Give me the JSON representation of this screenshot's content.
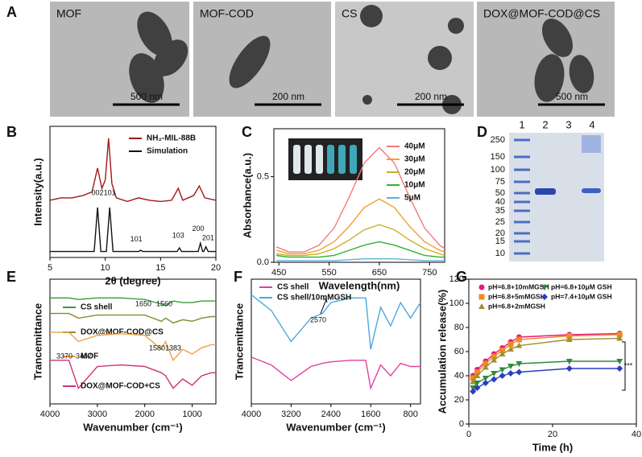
{
  "panel_labels": [
    "A",
    "B",
    "C",
    "D",
    "E",
    "F",
    "G"
  ],
  "tem_images": [
    {
      "label": "MOF",
      "scale": "500 nm"
    },
    {
      "label": "MOF-COD",
      "scale": "200 nm"
    },
    {
      "label": "CS",
      "scale": "200 nm"
    },
    {
      "label": "DOX@MOF-COD@CS",
      "scale": "500 nm"
    }
  ],
  "gel": {
    "lanes": [
      "1",
      "2",
      "3",
      "4"
    ],
    "markers": [
      250,
      150,
      100,
      75,
      50,
      40,
      35,
      25,
      20,
      15,
      10
    ]
  },
  "chart_data": [
    {
      "type": "line",
      "xlabel": "2θ (degree)",
      "ylabel": "Intensity(a.u.)",
      "xlim": [
        5,
        20
      ],
      "ylim": [
        0,
        110
      ],
      "xticks": [
        5,
        10,
        15,
        20
      ],
      "series": [
        {
          "name": "NH₂-MIL-88B",
          "color": "#a01818",
          "x": [
            5,
            6,
            7,
            8,
            8.8,
            9.3,
            9.7,
            10.0,
            10.3,
            10.6,
            11,
            12,
            13,
            14,
            15,
            16,
            16.6,
            17,
            18,
            18.5,
            19,
            20
          ],
          "values": [
            48,
            50,
            50,
            52,
            55,
            75,
            58,
            65,
            100,
            62,
            50,
            47,
            50,
            48,
            47,
            48,
            58,
            48,
            52,
            60,
            50,
            48
          ]
        },
        {
          "name": "Simulation",
          "color": "#111111",
          "x": [
            5,
            9.0,
            9.3,
            9.6,
            10.1,
            10.4,
            10.7,
            13,
            13.2,
            13.4,
            16.5,
            16.7,
            16.9,
            18.4,
            18.6,
            18.8,
            18.9,
            19.1,
            19.3,
            20
          ],
          "values": [
            5,
            5,
            42,
            5,
            5,
            42,
            5,
            5,
            6,
            5,
            5,
            8,
            5,
            5,
            12,
            5,
            5,
            9,
            5,
            5
          ]
        }
      ],
      "annotations": [
        "002",
        "101",
        "101",
        "103",
        "200",
        "201"
      ]
    },
    {
      "type": "line",
      "xlabel": "Wavelength(nm)",
      "ylabel": "Absorbance(a.u.)",
      "xlim": [
        440,
        780
      ],
      "ylim": [
        0,
        0.78
      ],
      "xticks": [
        450,
        550,
        650,
        750
      ],
      "yticks": [
        {
          "value": 0,
          "label": "0.0"
        },
        {
          "value": 0.5,
          "label": "0.5"
        }
      ],
      "x": [
        445,
        470,
        500,
        530,
        560,
        590,
        620,
        650,
        680,
        710,
        740,
        770,
        780
      ],
      "series": [
        {
          "name": "40μM",
          "color": "#f07a7a",
          "values": [
            0.09,
            0.06,
            0.06,
            0.1,
            0.2,
            0.38,
            0.58,
            0.67,
            0.58,
            0.38,
            0.2,
            0.1,
            0.08
          ]
        },
        {
          "name": "30μM",
          "color": "#f0a030",
          "values": [
            0.07,
            0.05,
            0.05,
            0.07,
            0.12,
            0.21,
            0.32,
            0.37,
            0.32,
            0.21,
            0.12,
            0.07,
            0.06
          ]
        },
        {
          "name": "20μM",
          "color": "#c8b020",
          "values": [
            0.05,
            0.04,
            0.04,
            0.05,
            0.08,
            0.13,
            0.19,
            0.22,
            0.19,
            0.13,
            0.08,
            0.05,
            0.04
          ]
        },
        {
          "name": "10μM",
          "color": "#30b030",
          "values": [
            0.04,
            0.03,
            0.03,
            0.03,
            0.04,
            0.07,
            0.1,
            0.12,
            0.1,
            0.07,
            0.04,
            0.03,
            0.03
          ]
        },
        {
          "name": "5μM",
          "color": "#60b0e0",
          "values": [
            0.01,
            0.01,
            0.01,
            0.01,
            0.01,
            0.015,
            0.02,
            0.02,
            0.02,
            0.015,
            0.01,
            0.01,
            0.01
          ]
        }
      ]
    },
    {
      "type": "line",
      "xlabel": "Wavenumber (cm⁻¹)",
      "ylabel": "Trancemittance",
      "xlim": [
        4000,
        500
      ],
      "ylim": [
        20,
        100
      ],
      "xticks": [
        4000,
        3000,
        2000,
        1000
      ],
      "x": [
        4000,
        3600,
        3400,
        3000,
        2500,
        2000,
        1650,
        1560,
        1400,
        1200,
        1000,
        800,
        600,
        500
      ],
      "series": [
        {
          "name": "CS shell",
          "color": "#3a9a3a",
          "values": [
            88,
            88,
            87,
            88,
            88,
            87,
            84,
            83,
            86,
            85,
            85,
            86,
            86,
            86
          ]
        },
        {
          "name": "DOX@MOF-COD@CS",
          "color": "#8a8a30",
          "values": [
            78,
            78,
            75,
            77,
            77,
            77,
            73,
            75,
            72,
            74,
            73,
            75,
            76,
            76
          ]
        },
        {
          "name": "MOF",
          "color": "#f0a040",
          "values": [
            66,
            66,
            60,
            64,
            65,
            64,
            55,
            60,
            48,
            55,
            52,
            56,
            58,
            58
          ]
        },
        {
          "name": "DOX@MOF-COD+CS",
          "color": "#d0307a",
          "values": [
            48,
            48,
            30,
            44,
            45,
            44,
            40,
            38,
            30,
            36,
            32,
            38,
            40,
            40
          ]
        }
      ],
      "annotations": [
        "1650",
        "1560",
        "3370",
        "3462",
        "1580",
        "1383"
      ]
    },
    {
      "type": "line",
      "xlabel": "Wavenumber (cm⁻¹)",
      "ylabel": "Trancemittance",
      "xlim": [
        4000,
        600
      ],
      "ylim": [
        20,
        100
      ],
      "xticks": [
        4000,
        3200,
        2400,
        1600,
        800
      ],
      "x": [
        4000,
        3600,
        3200,
        2800,
        2570,
        2400,
        2000,
        1700,
        1600,
        1400,
        1200,
        1000,
        800,
        600
      ],
      "series": [
        {
          "name": "CS shell",
          "color": "#e040a0",
          "values": [
            50,
            45,
            35,
            44,
            46,
            47,
            48,
            48,
            30,
            45,
            38,
            46,
            44,
            44
          ]
        },
        {
          "name": "CS shell/10mMGSH",
          "color": "#4aa8e0",
          "values": [
            90,
            80,
            60,
            75,
            78,
            85,
            88,
            88,
            55,
            82,
            70,
            85,
            75,
            85
          ]
        }
      ],
      "annotations": [
        "2570"
      ]
    },
    {
      "type": "line",
      "xlabel": "Time (h)",
      "ylabel": "Accumulation release(%)",
      "xlim": [
        0,
        40
      ],
      "ylim": [
        0,
        120
      ],
      "xticks": [
        0,
        20,
        40
      ],
      "yticks": [
        0,
        20,
        40,
        60,
        80,
        100,
        120
      ],
      "x": [
        1,
        2,
        4,
        6,
        8,
        10,
        12,
        24,
        36
      ],
      "series": [
        {
          "name": "pH=6.8+10mMGSH",
          "color": "#e6197f",
          "marker": "circle",
          "values": [
            40,
            45,
            52,
            58,
            63,
            68,
            72,
            74,
            75
          ]
        },
        {
          "name": "pH=6.8+5mMGSH",
          "color": "#f08a24",
          "marker": "square",
          "values": [
            38,
            43,
            50,
            56,
            61,
            66,
            70,
            73,
            74
          ]
        },
        {
          "name": "pH=6.8+2mMGSH",
          "color": "#a09030",
          "marker": "triangle",
          "values": [
            35,
            40,
            47,
            53,
            58,
            62,
            65,
            70,
            71
          ]
        },
        {
          "name": "pH=6.8+10μM GSH",
          "color": "#2e8b3e",
          "marker": "down",
          "values": [
            30,
            34,
            38,
            42,
            45,
            48,
            50,
            52,
            52
          ]
        },
        {
          "name": "pH=7.4+10μM GSH",
          "color": "#2a3fbf",
          "marker": "diamond",
          "values": [
            27,
            30,
            34,
            37,
            40,
            42,
            43,
            46,
            46
          ]
        }
      ],
      "annotations": [
        "***"
      ]
    }
  ]
}
